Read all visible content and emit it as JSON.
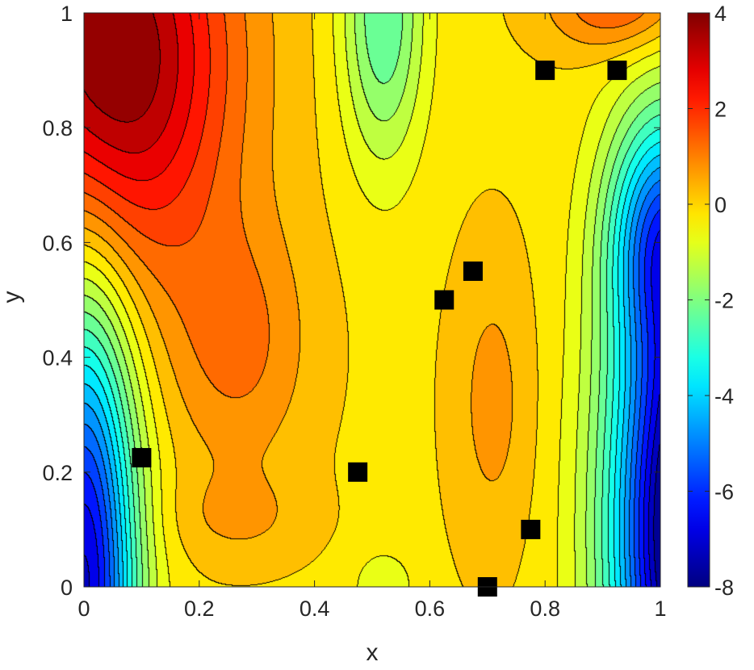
{
  "chart_data": {
    "type": "heatmap",
    "subtype": "filled-contour",
    "title": "",
    "xlabel": "x",
    "ylabel": "y",
    "xlim": [
      0,
      1
    ],
    "ylim": [
      0,
      1
    ],
    "x_ticks": [
      0,
      0.2,
      0.4,
      0.6,
      0.8,
      1
    ],
    "y_ticks": [
      0,
      0.2,
      0.4,
      0.6,
      0.8,
      1
    ],
    "x_tick_labels": [
      "0",
      "0.2",
      "0.4",
      "0.6",
      "0.8",
      "1"
    ],
    "y_tick_labels": [
      "0",
      "0.2",
      "0.4",
      "0.6",
      "0.8",
      "1"
    ],
    "colorbar": {
      "range": [
        -8,
        4
      ],
      "ticks": [
        4,
        2,
        0,
        -2,
        -4,
        -6,
        -8
      ],
      "tick_labels": [
        "4",
        "2",
        "0",
        "-2",
        "-4",
        "-6",
        "-8"
      ],
      "colormap": "jet"
    },
    "contour_levels": [
      -8,
      -7.5,
      -7,
      -6.5,
      -6,
      -5.5,
      -5,
      -4.5,
      -4,
      -3.5,
      -3,
      -2.5,
      -2,
      -1.5,
      -1,
      -0.5,
      0,
      0.5,
      1,
      1.5,
      2,
      2.5,
      3,
      3.5,
      4
    ],
    "grid": false,
    "markers": {
      "shape": "square",
      "color": "#000000",
      "points": [
        {
          "x": 0.1,
          "y": 0.225
        },
        {
          "x": 0.475,
          "y": 0.2
        },
        {
          "x": 0.625,
          "y": 0.5
        },
        {
          "x": 0.675,
          "y": 0.55
        },
        {
          "x": 0.7,
          "y": 0.0
        },
        {
          "x": 0.775,
          "y": 0.1
        },
        {
          "x": 0.8,
          "y": 0.9
        },
        {
          "x": 0.925,
          "y": 0.9
        }
      ]
    }
  }
}
